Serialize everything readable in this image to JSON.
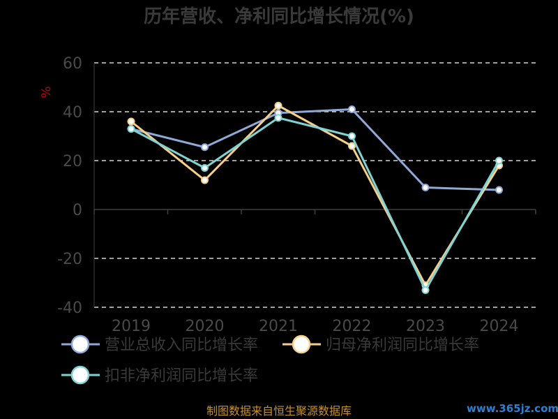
{
  "chart_data": {
    "type": "line",
    "title": "历年营收、净利同比增长情况(%)",
    "ylabel": "%",
    "categories": [
      "2019",
      "2020",
      "2021",
      "2022",
      "2023",
      "2024"
    ],
    "ylim": [
      -40,
      60
    ],
    "yticks": [
      60,
      40,
      20,
      0,
      -20,
      -40
    ],
    "grid": "dashed horizontal",
    "legend_position": "bottom",
    "series": [
      {
        "name": "营业总收入同比增长率",
        "color": "#8fa9d8",
        "values": [
          33.0,
          25.5,
          39.5,
          41.0,
          9.0,
          8.0
        ]
      },
      {
        "name": "归母净利润同比增长率",
        "color": "#f6d08a",
        "values": [
          36.0,
          12.0,
          42.5,
          26.0,
          -31.0,
          18.0
        ]
      },
      {
        "name": "扣非净利润同比增长率",
        "color": "#7fd3d3",
        "values": [
          33.0,
          17.0,
          37.5,
          30.0,
          -33.0,
          20.0
        ]
      }
    ]
  },
  "footer": {
    "source": "制图数据来自恒生聚源数据库",
    "watermark": "www.365jz.com"
  }
}
